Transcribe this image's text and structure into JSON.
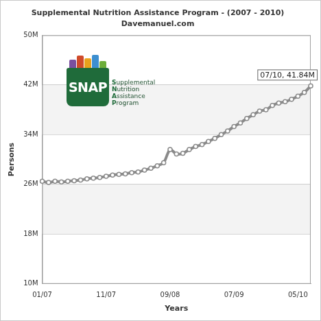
{
  "chart_data": {
    "type": "line",
    "title": "Supplemental Nutrition Assistance Program - (2007 - 2010)",
    "subtitle": "Davemanuel.com",
    "x_label": "Years",
    "y_label": "Persons",
    "categories": [
      "01/07",
      null,
      null,
      null,
      null,
      null,
      null,
      null,
      null,
      null,
      "11/07",
      null,
      null,
      null,
      null,
      null,
      null,
      null,
      null,
      null,
      "09/08",
      null,
      null,
      null,
      null,
      null,
      null,
      null,
      null,
      null,
      "07/09",
      null,
      null,
      null,
      null,
      null,
      null,
      null,
      null,
      null,
      "05/10",
      null,
      null
    ],
    "values": [
      26.5,
      26.3,
      26.5,
      26.4,
      26.5,
      26.6,
      26.7,
      26.9,
      27.0,
      27.1,
      27.3,
      27.5,
      27.6,
      27.7,
      27.9,
      28.0,
      28.3,
      28.6,
      29.0,
      29.5,
      31.6,
      30.9,
      31.0,
      31.6,
      32.1,
      32.4,
      32.9,
      33.4,
      34.0,
      34.6,
      35.3,
      35.9,
      36.6,
      37.2,
      37.8,
      38.0,
      38.7,
      39.1,
      39.3,
      39.7,
      40.2,
      40.8,
      41.84
    ],
    "color": "#8a8a8a",
    "marker": "circle",
    "ylim": [
      10,
      50
    ],
    "yticks": [
      {
        "value": 10,
        "label": "10M"
      },
      {
        "value": 18,
        "label": "18M"
      },
      {
        "value": 26,
        "label": "26M"
      },
      {
        "value": 34,
        "label": "34M"
      },
      {
        "value": 42,
        "label": "42M"
      },
      {
        "value": 50,
        "label": "50M"
      }
    ],
    "grid": true,
    "annotation": {
      "text": "07/10, 41.84M"
    },
    "logo": {
      "text": "SNAP",
      "caption": [
        "Supplemental",
        "Nutrition",
        "Assistance",
        "Program"
      ]
    }
  }
}
